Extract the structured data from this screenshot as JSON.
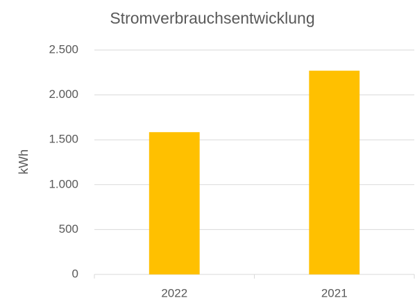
{
  "chart_data": {
    "type": "bar",
    "title": "Stromverbrauchsentwicklung",
    "y_label": "kWh",
    "categories": [
      "2022",
      "2021"
    ],
    "values": [
      1585,
      2270
    ],
    "color": "#ffc000",
    "ylim": [
      0,
      2500
    ],
    "yticks": [
      0,
      500,
      {
        "value": 1000,
        "label": "1.000"
      },
      {
        "value": 1500,
        "label": "1.500"
      },
      {
        "value": 2000,
        "label": "2.000"
      },
      {
        "value": 2500,
        "label": "2.500"
      }
    ],
    "grid": true
  }
}
